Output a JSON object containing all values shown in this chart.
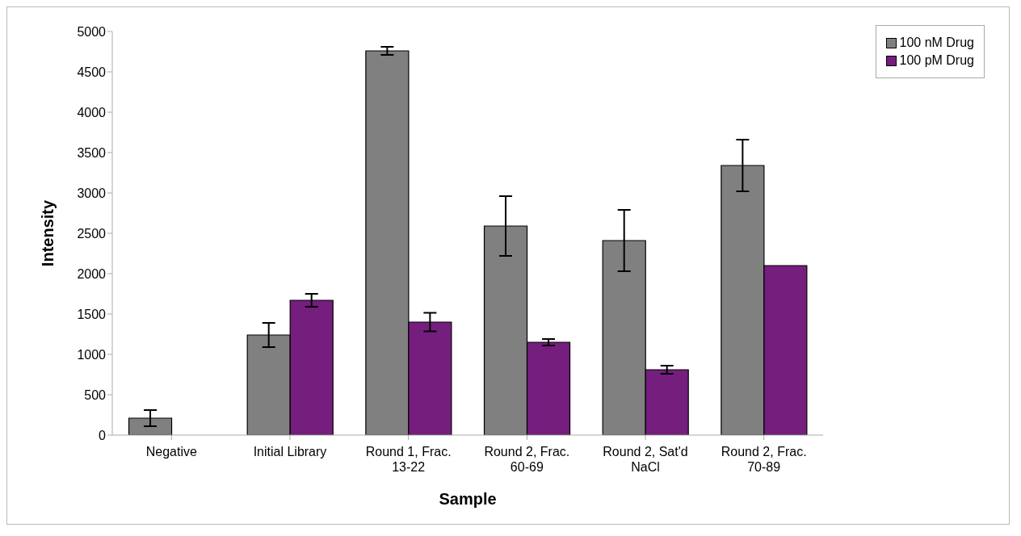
{
  "chart_data": {
    "type": "bar",
    "xlabel": "Sample",
    "ylabel": "Intensity",
    "categories": [
      "Negative",
      "Initial Library",
      "Round 1, Frac. 13-22",
      "Round 2, Frac. 60-69",
      "Round 2, Sat'd NaCl",
      "Round 2, Frac. 70-89"
    ],
    "series": [
      {
        "name": "100 nM Drug",
        "color": "#808080",
        "values": [
          210,
          1240,
          4760,
          2590,
          2410,
          3340
        ],
        "errors": [
          100,
          150,
          50,
          370,
          380,
          320
        ]
      },
      {
        "name": "100 pM Drug",
        "color": "#751e7e",
        "values": [
          null,
          1670,
          1400,
          1150,
          810,
          2100
        ],
        "errors": [
          null,
          80,
          115,
          40,
          50,
          null
        ]
      }
    ],
    "ylim": [
      0,
      5000
    ],
    "yticks": [
      0,
      500,
      1000,
      1500,
      2000,
      2500,
      3000,
      3500,
      4000,
      4500,
      5000
    ],
    "grid": false,
    "legend": "top right"
  }
}
